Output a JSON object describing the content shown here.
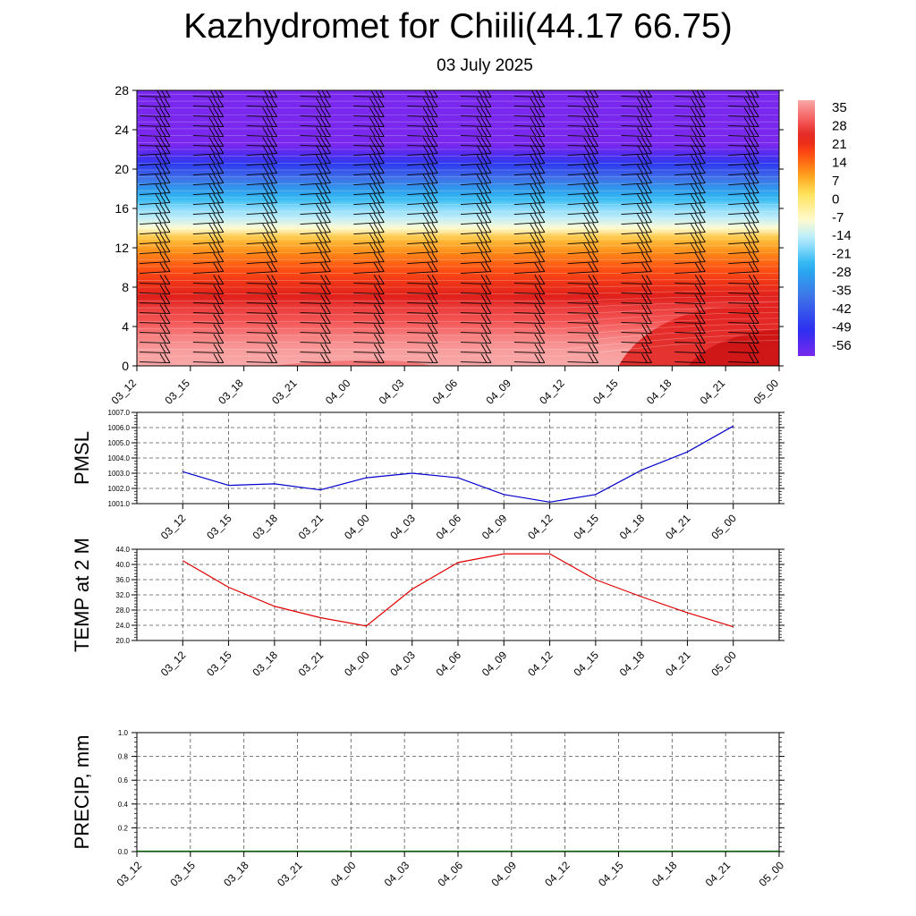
{
  "header": {
    "title": "Kazhydromet for Chiili(44.17 66.75)",
    "subtitle": "03 July 2025"
  },
  "chart_data": [
    {
      "type": "heatmap",
      "name": "temperature-cross-section",
      "x_categories": [
        "03_12",
        "03_15",
        "03_18",
        "03_21",
        "04_00",
        "04_03",
        "04_06",
        "04_09",
        "04_12",
        "04_15",
        "04_18",
        "04_21",
        "05_00"
      ],
      "y_ticks": [
        0,
        4,
        8,
        12,
        16,
        20,
        24,
        28
      ],
      "ylim": [
        0,
        28
      ],
      "colorbar_labels": [
        "35",
        "28",
        "21",
        "14",
        "7",
        "0",
        "-7",
        "-14",
        "-21",
        "-28",
        "-35",
        "-42",
        "-49",
        "-56"
      ],
      "color_stops": [
        {
          "value": 38,
          "color": "#f9a8a8"
        },
        {
          "value": 30,
          "color": "#f45555"
        },
        {
          "value": 24,
          "color": "#e0201c"
        },
        {
          "value": 18,
          "color": "#ff4a12"
        },
        {
          "value": 10,
          "color": "#ff9f1a"
        },
        {
          "value": 3,
          "color": "#ffe15a"
        },
        {
          "value": -7,
          "color": "#fffbd0"
        },
        {
          "value": -14,
          "color": "#b5ecff"
        },
        {
          "value": -24,
          "color": "#26b3f1"
        },
        {
          "value": -36,
          "color": "#3f73e8"
        },
        {
          "value": -48,
          "color": "#2b2ff0"
        },
        {
          "value": -58,
          "color": "#7a28ee"
        }
      ]
    },
    {
      "type": "line",
      "name": "pmsl",
      "ylabel": "PMSL",
      "categories": [
        "03_12",
        "03_15",
        "03_18",
        "03_21",
        "04_00",
        "04_03",
        "04_06",
        "04_09",
        "04_12",
        "04_15",
        "04_18",
        "04_21",
        "05_00"
      ],
      "y_ticks": [
        "1001.0",
        "1002.0",
        "1003.0",
        "1004.0",
        "1005.0",
        "1006.0",
        "1007.0"
      ],
      "ylim": [
        1001.0,
        1007.0
      ],
      "series": [
        {
          "values": [
            1003.1,
            1002.2,
            1002.3,
            1001.9,
            1002.7,
            1003.0,
            1002.7,
            1001.6,
            1001.1,
            1001.6,
            1003.2,
            1004.4,
            1006.1
          ],
          "color": "#0000cc"
        }
      ]
    },
    {
      "type": "line",
      "name": "temp2m",
      "ylabel": "TEMP at 2 M",
      "categories": [
        "03_12",
        "03_15",
        "03_18",
        "03_21",
        "04_00",
        "04_03",
        "04_06",
        "04_09",
        "04_12",
        "04_15",
        "04_18",
        "04_21",
        "05_00"
      ],
      "y_ticks": [
        "20.0",
        "24.0",
        "28.0",
        "32.0",
        "36.0",
        "40.0",
        "44.0"
      ],
      "ylim": [
        20.0,
        44.0
      ],
      "series": [
        {
          "values": [
            41.0,
            34.0,
            29.0,
            26.0,
            23.8,
            33.5,
            40.5,
            42.8,
            42.8,
            36.0,
            31.5,
            27.3,
            23.6
          ],
          "color": "#e00000"
        }
      ]
    },
    {
      "type": "line",
      "name": "precip",
      "ylabel": "PRECIP, mm",
      "categories": [
        "03_12",
        "03_15",
        "03_18",
        "03_21",
        "04_00",
        "04_03",
        "04_06",
        "04_09",
        "04_12",
        "04_15",
        "04_18",
        "04_21",
        "05_00"
      ],
      "y_ticks": [
        "0.0",
        "0.2",
        "0.4",
        "0.6",
        "0.8",
        "1.0"
      ],
      "ylim": [
        0.0,
        1.0
      ],
      "series": [
        {
          "values": [
            0,
            0,
            0,
            0,
            0,
            0,
            0,
            0,
            0,
            0,
            0,
            0,
            0
          ],
          "color": "#006400"
        }
      ]
    }
  ]
}
